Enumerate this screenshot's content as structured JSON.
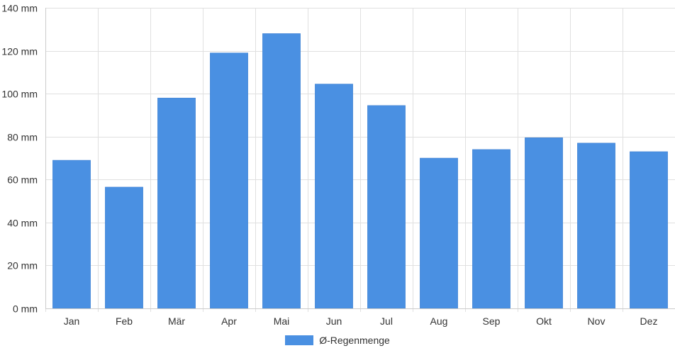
{
  "chart_data": {
    "type": "bar",
    "categories": [
      "Jan",
      "Feb",
      "Mär",
      "Apr",
      "Mai",
      "Jun",
      "Jul",
      "Aug",
      "Sep",
      "Okt",
      "Nov",
      "Dez"
    ],
    "series": [
      {
        "name": "Ø-Regenmenge",
        "values": [
          69,
          56.5,
          98,
          119,
          128,
          104.5,
          94.5,
          70,
          74,
          79.5,
          77,
          73
        ]
      }
    ],
    "title": "",
    "xlabel": "",
    "ylabel": "",
    "ylim": [
      0,
      140
    ],
    "yticks": [
      0,
      20,
      40,
      60,
      80,
      100,
      120,
      140
    ],
    "ytick_suffix": " mm",
    "grid": true,
    "legend_position": "bottom-center"
  },
  "colors": {
    "bar": "#4a90e2",
    "grid": "#e0e0e0",
    "axis": "#cccccc"
  }
}
